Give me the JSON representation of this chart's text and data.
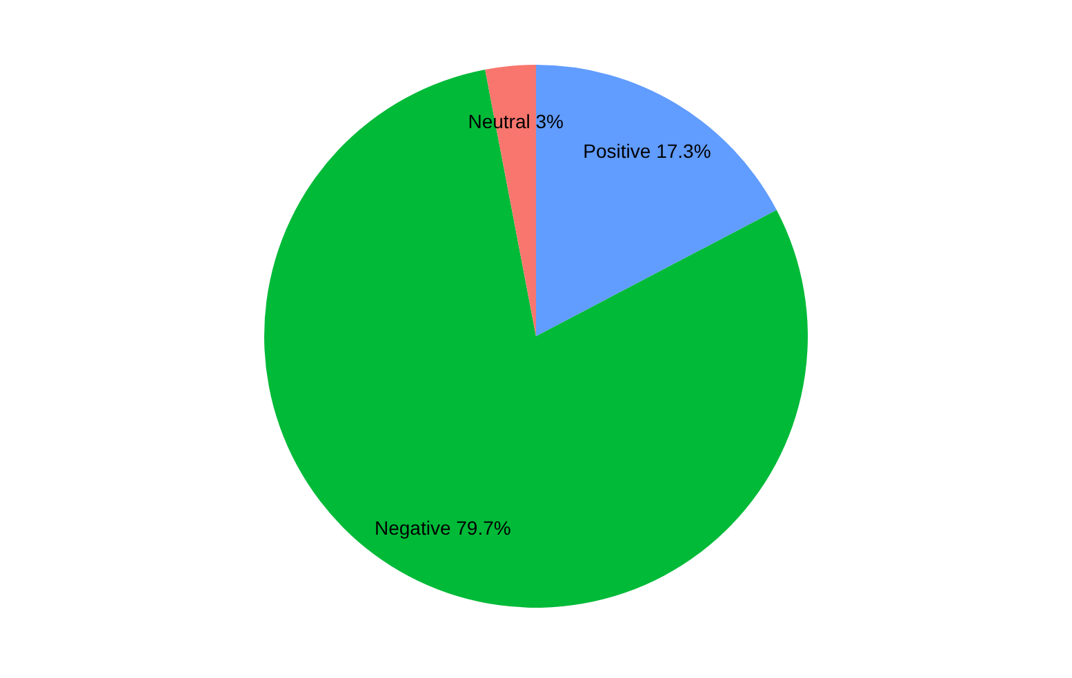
{
  "chart_data": {
    "type": "pie",
    "categories": [
      "Positive",
      "Negative",
      "Neutral"
    ],
    "values": [
      17.3,
      79.7,
      3
    ],
    "colors": [
      "#619cff",
      "#00ba38",
      "#f8766d"
    ],
    "value_labels": [
      "17.3%",
      "79.7%",
      "3%"
    ],
    "legend": false
  }
}
